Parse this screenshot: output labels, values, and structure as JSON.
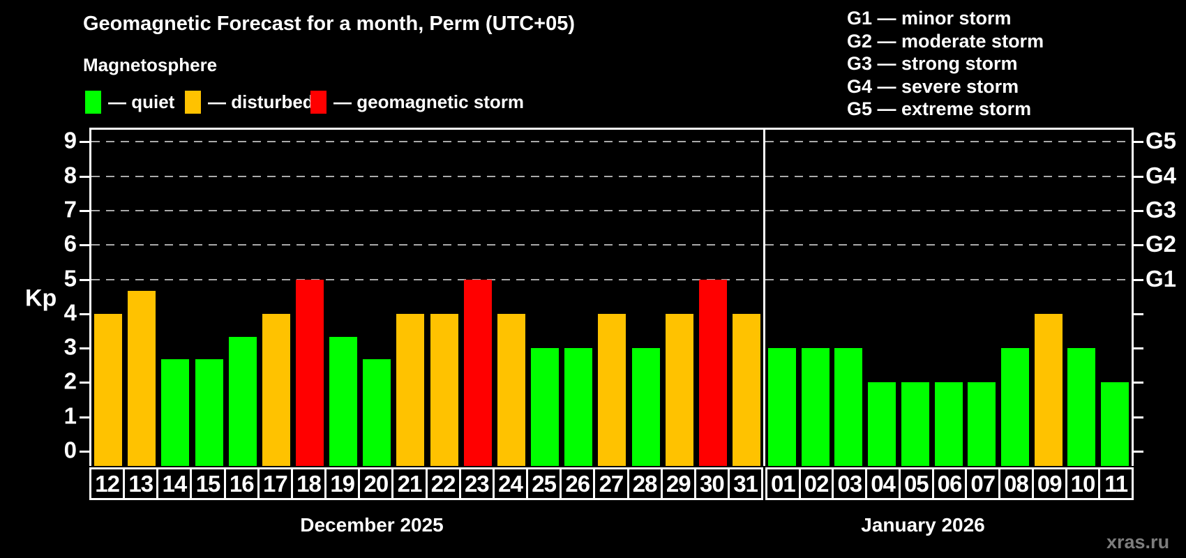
{
  "header": {
    "subtitle": "Magnetosphere"
  },
  "legend": {
    "items": [
      {
        "label": "— quiet",
        "status": "quiet"
      },
      {
        "label": "— disturbed",
        "status": "disturbed"
      },
      {
        "label": "— geomagnetic storm",
        "status": "storm"
      }
    ]
  },
  "g_legend": {
    "items": [
      "G1 — minor storm",
      "G2 — moderate storm",
      "G3 — strong storm",
      "G4 — severe storm",
      "G5 — extreme storm"
    ]
  },
  "colors": {
    "quiet": "#00ff00",
    "disturbed": "#ffc200",
    "storm": "#ff0000",
    "grid": "#aaaaaa",
    "axis": "#ffffff",
    "watermark": "#7d7d7d",
    "background": "#000000"
  },
  "watermark": "xras.ru",
  "chart_data": {
    "type": "bar",
    "title": "Geomagnetic Forecast for a month, Perm (UTC+05)",
    "ylabel": "Kp",
    "ylim": [
      0,
      9.4
    ],
    "y_ticks": [
      0,
      1,
      2,
      3,
      4,
      5,
      6,
      7,
      8,
      9
    ],
    "gridlines_at_kp": [
      5,
      6,
      7,
      8,
      9
    ],
    "grid": "dashed",
    "legend_position": "top-left",
    "right_axis": [
      {
        "label": "G1",
        "kp": 5
      },
      {
        "label": "G2",
        "kp": 6
      },
      {
        "label": "G3",
        "kp": 7
      },
      {
        "label": "G4",
        "kp": 8
      },
      {
        "label": "G5",
        "kp": 9
      }
    ],
    "months": [
      {
        "label": "December 2025",
        "days": [
          {
            "day": "12",
            "kp": 4,
            "status": "disturbed"
          },
          {
            "day": "13",
            "kp": 4.67,
            "status": "disturbed"
          },
          {
            "day": "14",
            "kp": 2.67,
            "status": "quiet"
          },
          {
            "day": "15",
            "kp": 2.67,
            "status": "quiet"
          },
          {
            "day": "16",
            "kp": 3.33,
            "status": "quiet"
          },
          {
            "day": "17",
            "kp": 4,
            "status": "disturbed"
          },
          {
            "day": "18",
            "kp": 5,
            "status": "storm"
          },
          {
            "day": "19",
            "kp": 3.33,
            "status": "quiet"
          },
          {
            "day": "20",
            "kp": 2.67,
            "status": "quiet"
          },
          {
            "day": "21",
            "kp": 4,
            "status": "disturbed"
          },
          {
            "day": "22",
            "kp": 4,
            "status": "disturbed"
          },
          {
            "day": "23",
            "kp": 5,
            "status": "storm"
          },
          {
            "day": "24",
            "kp": 4,
            "status": "disturbed"
          },
          {
            "day": "25",
            "kp": 3,
            "status": "quiet"
          },
          {
            "day": "26",
            "kp": 3,
            "status": "quiet"
          },
          {
            "day": "27",
            "kp": 4,
            "status": "disturbed"
          },
          {
            "day": "28",
            "kp": 3,
            "status": "quiet"
          },
          {
            "day": "29",
            "kp": 4,
            "status": "disturbed"
          },
          {
            "day": "30",
            "kp": 5,
            "status": "storm"
          },
          {
            "day": "31",
            "kp": 4,
            "status": "disturbed"
          }
        ]
      },
      {
        "label": "January 2026",
        "days": [
          {
            "day": "01",
            "kp": 3,
            "status": "quiet"
          },
          {
            "day": "02",
            "kp": 3,
            "status": "quiet"
          },
          {
            "day": "03",
            "kp": 3,
            "status": "quiet"
          },
          {
            "day": "04",
            "kp": 2,
            "status": "quiet"
          },
          {
            "day": "05",
            "kp": 2,
            "status": "quiet"
          },
          {
            "day": "06",
            "kp": 2,
            "status": "quiet"
          },
          {
            "day": "07",
            "kp": 2,
            "status": "quiet"
          },
          {
            "day": "08",
            "kp": 3,
            "status": "quiet"
          },
          {
            "day": "09",
            "kp": 4,
            "status": "disturbed"
          },
          {
            "day": "10",
            "kp": 3,
            "status": "quiet"
          },
          {
            "day": "11",
            "kp": 2,
            "status": "quiet"
          }
        ]
      }
    ]
  }
}
